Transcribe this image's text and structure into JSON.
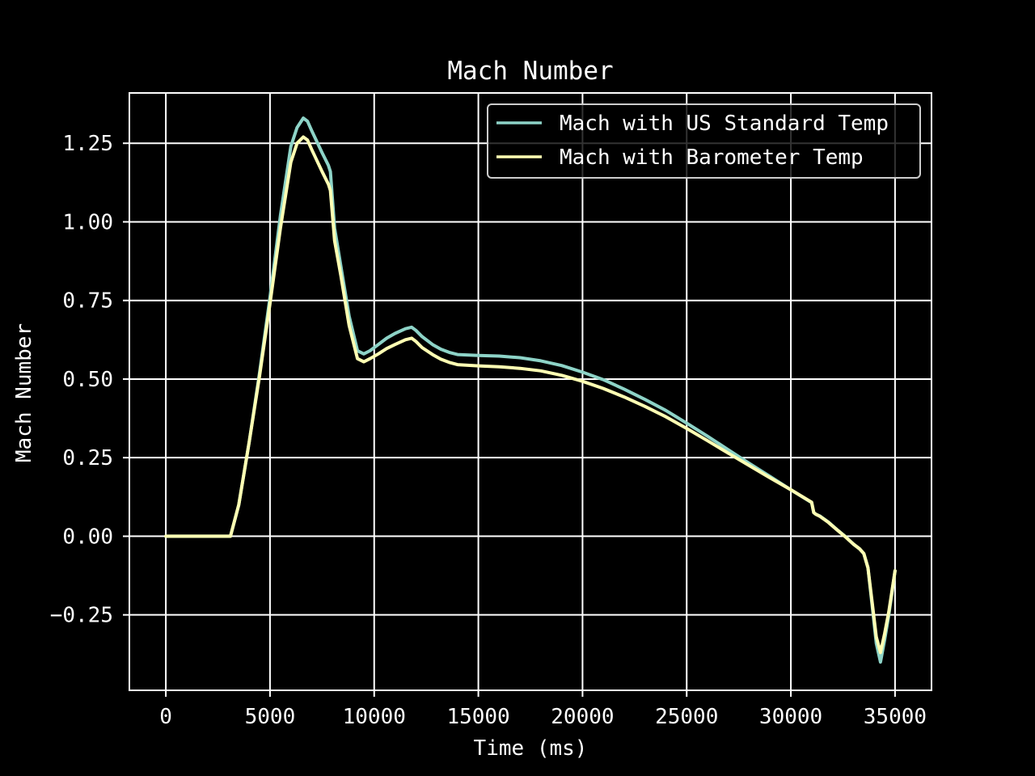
{
  "chart_data": {
    "type": "line",
    "title": "Mach Number",
    "xlabel": "Time (ms)",
    "ylabel": "Mach Number",
    "xlim": [
      -1750,
      36750
    ],
    "ylim": [
      -0.49,
      1.41
    ],
    "xticks": [
      0,
      5000,
      10000,
      15000,
      20000,
      25000,
      30000,
      35000
    ],
    "xtick_labels": [
      "0",
      "5000",
      "10000",
      "15000",
      "20000",
      "25000",
      "30000",
      "35000"
    ],
    "yticks": [
      -0.25,
      0.0,
      0.25,
      0.5,
      0.75,
      1.0,
      1.25
    ],
    "ytick_labels": [
      "−0.25",
      "0.00",
      "0.25",
      "0.50",
      "0.75",
      "1.00",
      "1.25"
    ],
    "grid": true,
    "legend_position": "top-right",
    "background": "#000000",
    "series": [
      {
        "name": "Mach with US Standard Temp",
        "color": "#8dd3c7",
        "x": [
          0,
          3100,
          3500,
          4000,
          4500,
          5000,
          5500,
          6000,
          6300,
          6600,
          6800,
          7000,
          7500,
          7800,
          7900,
          8100,
          8400,
          8800,
          9200,
          9500,
          9800,
          10200,
          10600,
          11000,
          11500,
          11800,
          12000,
          12300,
          12800,
          13200,
          13600,
          14000,
          15000,
          16000,
          17000,
          18000,
          19000,
          20000,
          21000,
          22000,
          23000,
          24000,
          25000,
          26000,
          27000,
          28000,
          29000,
          30000,
          31000,
          31100,
          31200,
          31400,
          31800,
          32200,
          32600,
          33000,
          33300,
          33500,
          33700,
          33900,
          34100,
          34300,
          34500,
          34700,
          35000
        ],
        "y": [
          0.0,
          0.0,
          0.1,
          0.3,
          0.52,
          0.76,
          1.02,
          1.24,
          1.3,
          1.33,
          1.32,
          1.29,
          1.22,
          1.18,
          1.16,
          0.98,
          0.86,
          0.7,
          0.59,
          0.58,
          0.59,
          0.61,
          0.63,
          0.645,
          0.66,
          0.665,
          0.655,
          0.635,
          0.61,
          0.595,
          0.585,
          0.578,
          0.575,
          0.573,
          0.568,
          0.558,
          0.543,
          0.522,
          0.498,
          0.468,
          0.435,
          0.4,
          0.36,
          0.318,
          0.275,
          0.232,
          0.19,
          0.148,
          0.107,
          0.075,
          0.07,
          0.064,
          0.045,
          0.022,
          0.0,
          -0.025,
          -0.04,
          -0.055,
          -0.1,
          -0.22,
          -0.34,
          -0.4,
          -0.33,
          -0.25,
          -0.11
        ]
      },
      {
        "name": "Mach with Barometer Temp",
        "color": "#ffffb3",
        "x": [
          0,
          3100,
          3500,
          4000,
          4500,
          5000,
          5500,
          6000,
          6300,
          6600,
          6800,
          7000,
          7500,
          7800,
          7900,
          8100,
          8400,
          8800,
          9200,
          9500,
          9800,
          10200,
          10600,
          11000,
          11500,
          11800,
          12000,
          12300,
          12800,
          13200,
          13600,
          14000,
          15000,
          16000,
          17000,
          18000,
          19000,
          20000,
          21000,
          22000,
          23000,
          24000,
          25000,
          26000,
          27000,
          28000,
          29000,
          30000,
          31000,
          31100,
          31200,
          31400,
          31800,
          32200,
          32600,
          33000,
          33300,
          33500,
          33700,
          33900,
          34100,
          34300,
          34500,
          34700,
          35000
        ],
        "y": [
          0.0,
          0.0,
          0.1,
          0.3,
          0.51,
          0.74,
          0.98,
          1.19,
          1.25,
          1.27,
          1.26,
          1.23,
          1.16,
          1.12,
          1.1,
          0.94,
          0.83,
          0.67,
          0.565,
          0.555,
          0.565,
          0.58,
          0.597,
          0.61,
          0.625,
          0.63,
          0.62,
          0.6,
          0.578,
          0.563,
          0.553,
          0.546,
          0.542,
          0.539,
          0.534,
          0.526,
          0.512,
          0.493,
          0.47,
          0.443,
          0.413,
          0.38,
          0.343,
          0.304,
          0.264,
          0.225,
          0.186,
          0.148,
          0.108,
          0.075,
          0.07,
          0.063,
          0.044,
          0.021,
          -0.001,
          -0.025,
          -0.04,
          -0.055,
          -0.1,
          -0.21,
          -0.32,
          -0.37,
          -0.31,
          -0.24,
          -0.11
        ]
      }
    ]
  }
}
